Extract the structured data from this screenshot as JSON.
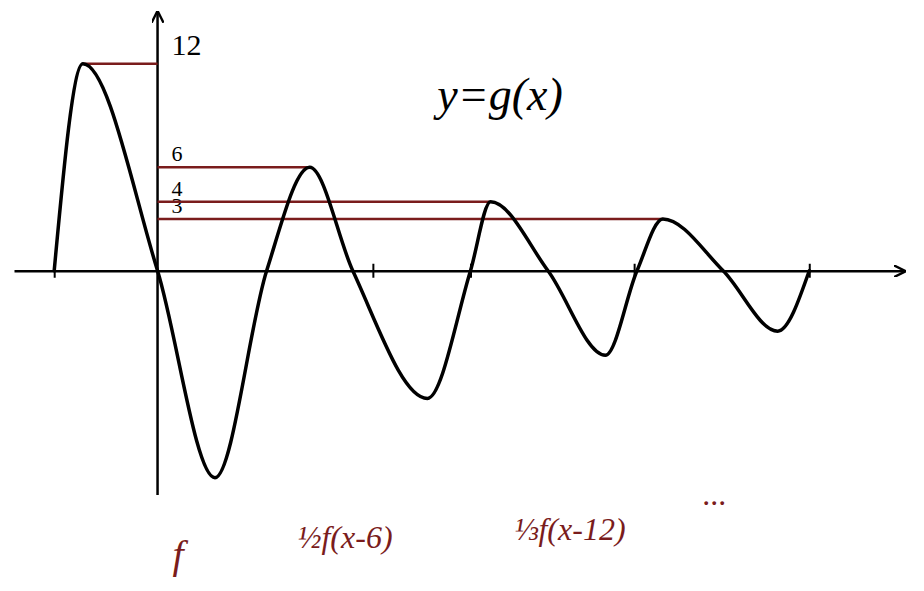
{
  "chart_data": {
    "type": "line",
    "title": "y=g(x)",
    "x": [
      -3.6,
      -2.6,
      0,
      2.0,
      3.8,
      5.3,
      6.8,
      9.4,
      10.9,
      11.6,
      13.6,
      15.6,
      16.7,
      17.6,
      19.7,
      21.6,
      22.7
    ],
    "values": [
      0,
      12,
      0,
      -12,
      0,
      6,
      0,
      -7.4,
      0,
      4,
      0,
      -4.9,
      0,
      3,
      0,
      -3.5,
      0
    ],
    "color": "#000000",
    "xlim": [
      -5,
      26
    ],
    "ylim": [
      -13,
      15
    ],
    "xticks": [
      -3.6,
      7.5,
      10.9,
      16.6,
      22.7
    ],
    "yticks": [
      12,
      6,
      4,
      3
    ],
    "tick_labels": "y",
    "grid": true,
    "annotations": [
      "f",
      "½f(x-6)",
      "⅓f(x-12)",
      "..."
    ]
  }
}
